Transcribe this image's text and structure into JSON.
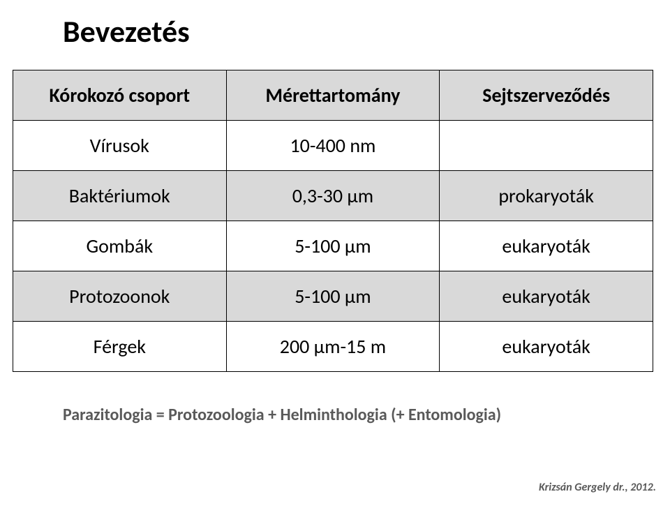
{
  "title": "Bevezetés",
  "table": {
    "headers": [
      "Kórokozó csoport",
      "Mérettartomány",
      "Sejtszerveződés"
    ],
    "rows": [
      {
        "c1": "Vírusok",
        "c2": "10-400 nm",
        "c3": "",
        "shade": "white"
      },
      {
        "c1": "Baktériumok",
        "c2": "0,3-30 μm",
        "c3": "prokaryoták",
        "shade": "grey"
      },
      {
        "c1": "Gombák",
        "c2": "5-100 μm",
        "c3": "eukaryoták",
        "shade": "white"
      },
      {
        "c1": "Protozoonok",
        "c2": "5-100 μm",
        "c3": "eukaryoták",
        "shade": "grey"
      },
      {
        "c1": "Férgek",
        "c2": "200 μm-15 m",
        "c3": "eukaryoták",
        "shade": "white"
      }
    ],
    "header_bg": "#d9d9d9",
    "shaded_row_bg": "#d9d9d9",
    "border_color": "#000000",
    "font_size": 28,
    "header_font_weight": 700
  },
  "formula": "Parazitologia = Protozoologia + Helminthologia (+ Entomologia)",
  "footer": "Krizsán Gergely dr., 2012.",
  "colors": {
    "background": "#ffffff",
    "title_color": "#000000",
    "formula_color": "#595959",
    "footer_color": "#595959"
  },
  "typography": {
    "title_fontsize": 44,
    "title_weight": 700,
    "formula_fontsize": 24,
    "formula_weight": 700,
    "footer_fontsize": 16,
    "footer_style": "italic",
    "footer_weight": 700,
    "font_family": "Calibri"
  }
}
